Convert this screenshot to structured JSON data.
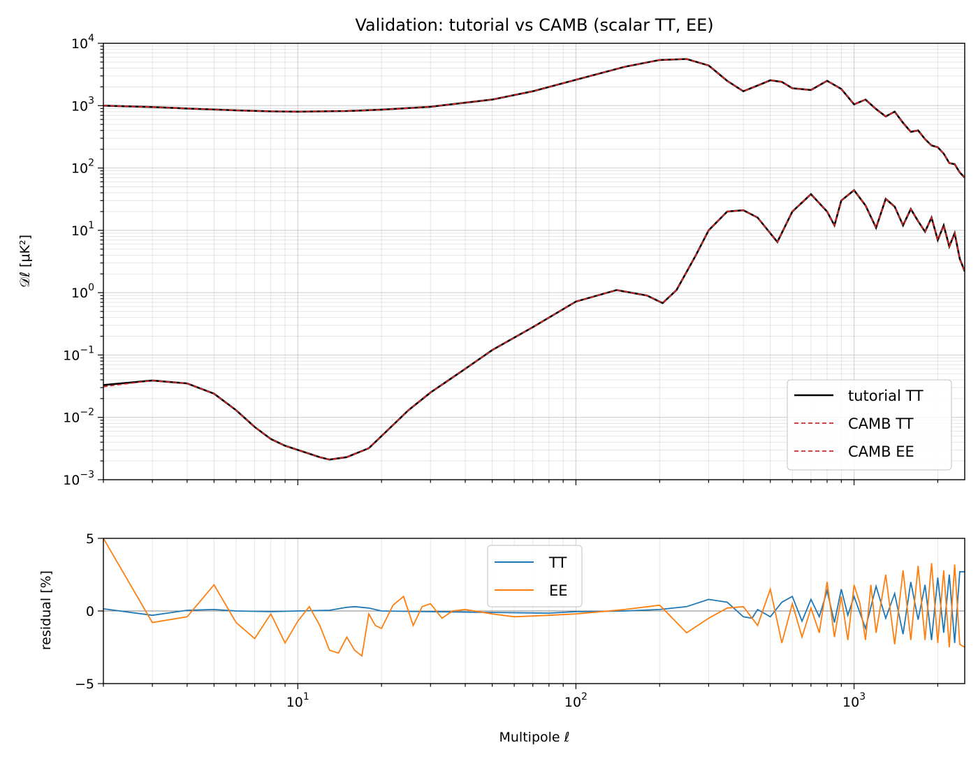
{
  "chart_data": [
    {
      "type": "line",
      "title": "Validation: tutorial vs CAMB (scalar TT, EE)",
      "xlabel": "",
      "ylabel": "𝒟ℓ [μK²]",
      "xscale": "log",
      "yscale": "log",
      "xlim": [
        2,
        2500
      ],
      "ylim": [
        0.001,
        10000
      ],
      "x_ticks": [
        {
          "value": 10,
          "base": "10",
          "exp": "1"
        },
        {
          "value": 100,
          "base": "10",
          "exp": "2"
        },
        {
          "value": 1000,
          "base": "10",
          "exp": "3"
        }
      ],
      "y_ticks": [
        {
          "value": 0.001,
          "base": "10",
          "exp": "−3"
        },
        {
          "value": 0.01,
          "base": "10",
          "exp": "−2"
        },
        {
          "value": 0.1,
          "base": "10",
          "exp": "−1"
        },
        {
          "value": 1,
          "base": "10",
          "exp": "0"
        },
        {
          "value": 10,
          "base": "10",
          "exp": "1"
        },
        {
          "value": 100,
          "base": "10",
          "exp": "2"
        },
        {
          "value": 1000,
          "base": "10",
          "exp": "3"
        },
        {
          "value": 10000,
          "base": "10",
          "exp": "4"
        }
      ],
      "grid": true,
      "legend_position": "lower-right",
      "series": [
        {
          "name": "tutorial TT",
          "color": "#000000",
          "style": "solid",
          "x": [
            2,
            3,
            4,
            6,
            8,
            10,
            15,
            20,
            30,
            50,
            70,
            100,
            150,
            200,
            250,
            300,
            350,
            400,
            450,
            500,
            550,
            600,
            700,
            800,
            900,
            1000,
            1100,
            1200,
            1300,
            1400,
            1500,
            1600,
            1700,
            1800,
            1900,
            2000,
            2100,
            2200,
            2300,
            2400,
            2500
          ],
          "y": [
            1000,
            950,
            900,
            840,
            810,
            800,
            820,
            860,
            960,
            1250,
            1700,
            2600,
            4200,
            5400,
            5600,
            4400,
            2500,
            1700,
            2100,
            2550,
            2400,
            1900,
            1780,
            2500,
            1850,
            1050,
            1250,
            880,
            670,
            800,
            530,
            380,
            400,
            290,
            230,
            215,
            170,
            120,
            115,
            85,
            70
          ]
        },
        {
          "name": "CAMB TT",
          "color": "#d62728",
          "style": "dashed",
          "x": [
            2,
            3,
            4,
            6,
            8,
            10,
            15,
            20,
            30,
            50,
            70,
            100,
            150,
            200,
            250,
            300,
            350,
            400,
            450,
            500,
            550,
            600,
            700,
            800,
            900,
            1000,
            1100,
            1200,
            1300,
            1400,
            1500,
            1600,
            1700,
            1800,
            1900,
            2000,
            2100,
            2200,
            2300,
            2400,
            2500
          ],
          "y": [
            1000,
            950,
            900,
            840,
            810,
            800,
            820,
            860,
            960,
            1250,
            1700,
            2600,
            4200,
            5400,
            5600,
            4400,
            2500,
            1700,
            2100,
            2550,
            2400,
            1900,
            1780,
            2500,
            1850,
            1050,
            1250,
            880,
            670,
            800,
            530,
            380,
            400,
            290,
            230,
            215,
            170,
            120,
            115,
            85,
            70
          ]
        },
        {
          "name": "EE",
          "color": "#000000",
          "style": "solid",
          "x": [
            2,
            3,
            4,
            5,
            6,
            7,
            8,
            9,
            10,
            12,
            13,
            15,
            18,
            20,
            25,
            30,
            40,
            50,
            70,
            100,
            140,
            180,
            205,
            230,
            270,
            300,
            350,
            400,
            450,
            530,
            600,
            700,
            800,
            850,
            900,
            1000,
            1100,
            1200,
            1300,
            1400,
            1500,
            1600,
            1700,
            1800,
            1900,
            2000,
            2100,
            2200,
            2300,
            2400,
            2500
          ],
          "y": [
            0.033,
            0.039,
            0.035,
            0.024,
            0.013,
            0.007,
            0.0045,
            0.0035,
            0.003,
            0.0023,
            0.0021,
            0.0023,
            0.0032,
            0.005,
            0.013,
            0.025,
            0.06,
            0.12,
            0.28,
            0.72,
            1.1,
            0.9,
            0.68,
            1.1,
            4,
            10,
            20,
            21,
            16,
            6.5,
            20,
            38,
            20,
            12,
            30,
            44,
            25,
            11,
            32,
            24,
            12,
            22,
            14,
            9.5,
            16,
            7,
            12,
            5.5,
            9,
            3.5,
            2.2
          ]
        },
        {
          "name": "CAMB EE",
          "color": "#d62728",
          "style": "dashed",
          "x": [
            2,
            3,
            4,
            5,
            6,
            7,
            8,
            9,
            10,
            12,
            13,
            15,
            18,
            20,
            25,
            30,
            40,
            50,
            70,
            100,
            140,
            180,
            205,
            230,
            270,
            300,
            350,
            400,
            450,
            530,
            600,
            700,
            800,
            850,
            900,
            1000,
            1100,
            1200,
            1300,
            1400,
            1500,
            1600,
            1700,
            1800,
            1900,
            2000,
            2100,
            2200,
            2300,
            2400,
            2500
          ],
          "y": [
            0.031,
            0.039,
            0.035,
            0.024,
            0.013,
            0.007,
            0.0045,
            0.0035,
            0.003,
            0.0023,
            0.0021,
            0.0023,
            0.0032,
            0.005,
            0.013,
            0.025,
            0.06,
            0.12,
            0.28,
            0.72,
            1.1,
            0.9,
            0.68,
            1.1,
            4,
            10,
            20,
            21,
            16,
            6.5,
            20,
            38,
            20,
            12,
            30,
            44,
            25,
            11,
            32,
            24,
            12,
            22,
            14,
            9.5,
            16,
            7,
            12,
            5.5,
            9,
            3.5,
            2.2
          ]
        }
      ],
      "legend": [
        "tutorial TT",
        "CAMB TT",
        "CAMB EE"
      ]
    },
    {
      "type": "line",
      "title": "",
      "xlabel": "Multipole ℓ",
      "ylabel": "residual [%]",
      "xscale": "log",
      "xlim": [
        2,
        2500
      ],
      "ylim": [
        -5,
        5
      ],
      "y_ticks": [
        "5",
        "0",
        "−5"
      ],
      "grid": true,
      "legend_position": "upper-center",
      "series": [
        {
          "name": "TT",
          "color": "#1f77b4",
          "x": [
            2,
            3,
            4,
            5,
            6,
            8,
            10,
            13,
            15,
            16,
            18,
            20,
            30,
            50,
            80,
            100,
            150,
            200,
            250,
            300,
            350,
            400,
            430,
            450,
            500,
            550,
            600,
            650,
            700,
            750,
            800,
            850,
            900,
            950,
            1000,
            1100,
            1200,
            1300,
            1400,
            1500,
            1600,
            1700,
            1800,
            1900,
            2000,
            2100,
            2200,
            2300,
            2400,
            2500
          ],
          "y": [
            0.15,
            -0.3,
            0.05,
            0.1,
            0.0,
            -0.05,
            0.0,
            0.05,
            0.25,
            0.3,
            0.2,
            0.0,
            -0.05,
            -0.1,
            -0.15,
            -0.05,
            0.0,
            0.1,
            0.3,
            0.8,
            0.6,
            -0.4,
            -0.5,
            0.1,
            -0.4,
            0.6,
            1.0,
            -0.7,
            0.8,
            -0.4,
            1.4,
            -0.8,
            1.5,
            -0.3,
            1.0,
            -1.2,
            1.7,
            -0.5,
            1.2,
            -1.6,
            2.0,
            -0.6,
            1.8,
            -2.0,
            2.3,
            -1.5,
            2.5,
            -2.2,
            2.7,
            2.7
          ]
        },
        {
          "name": "EE",
          "color": "#ff7f0e",
          "x": [
            2,
            3,
            4,
            5,
            6,
            7,
            8,
            9,
            10,
            11,
            12,
            13,
            14,
            15,
            16,
            17,
            18,
            19,
            20,
            22,
            24,
            26,
            28,
            30,
            33,
            36,
            40,
            50,
            60,
            80,
            100,
            150,
            200,
            250,
            300,
            350,
            400,
            450,
            500,
            550,
            600,
            650,
            700,
            750,
            800,
            850,
            900,
            950,
            1000,
            1050,
            1100,
            1150,
            1200,
            1300,
            1400,
            1500,
            1600,
            1700,
            1800,
            1900,
            2000,
            2100,
            2200,
            2300,
            2400,
            2500
          ],
          "y": [
            5,
            -0.8,
            -0.4,
            1.8,
            -0.8,
            -1.9,
            -0.2,
            -2.2,
            -0.7,
            0.3,
            -1.0,
            -2.7,
            -2.9,
            -1.8,
            -2.7,
            -3.1,
            -0.2,
            -1.0,
            -1.2,
            0.4,
            1.0,
            -1.0,
            0.3,
            0.5,
            -0.5,
            0.0,
            0.1,
            -0.2,
            -0.4,
            -0.3,
            -0.2,
            0.1,
            0.4,
            -1.5,
            -0.5,
            0.2,
            0.3,
            -1.0,
            1.5,
            -2.2,
            0.5,
            -1.8,
            0.2,
            -1.5,
            2.0,
            -1.8,
            1.0,
            -2.0,
            1.8,
            0.5,
            -2.0,
            1.8,
            -1.5,
            2.5,
            -2.3,
            2.8,
            -2.0,
            3.1,
            -2.0,
            3.3,
            -2.2,
            2.8,
            -2.5,
            3.2,
            -2.3,
            -2.5
          ]
        }
      ],
      "legend": [
        "TT",
        "EE"
      ]
    }
  ]
}
